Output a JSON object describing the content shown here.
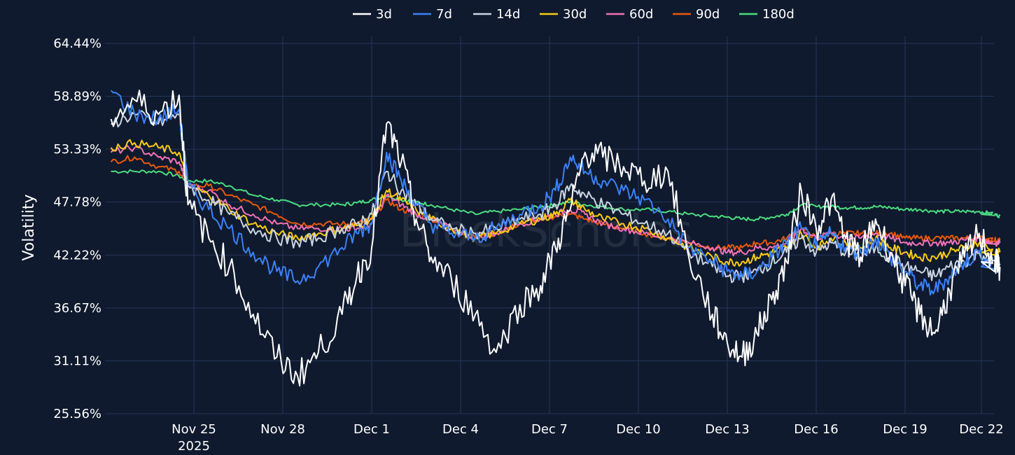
{
  "chart_data": {
    "type": "line",
    "title": "",
    "xlabel": "",
    "ylabel": "Volatility",
    "watermark": "BlockScholes",
    "ylim": [
      25.56,
      64.44
    ],
    "yticks": [
      "64.44%",
      "58.89%",
      "53.33%",
      "47.78%",
      "42.22%",
      "36.67%",
      "31.11%",
      "25.56%"
    ],
    "ytick_values": [
      64.44,
      58.89,
      53.33,
      47.78,
      42.22,
      36.67,
      31.11,
      25.56
    ],
    "xlim": [
      21.0,
      51.0
    ],
    "xticks": [
      {
        "day": 24.0,
        "label": "Nov 25",
        "sub": "2025"
      },
      {
        "day": 27.0,
        "label": "Nov 28",
        "sub": ""
      },
      {
        "day": 30.0,
        "label": "Dec 1",
        "sub": ""
      },
      {
        "day": 33.0,
        "label": "Dec 4",
        "sub": ""
      },
      {
        "day": 36.0,
        "label": "Dec 7",
        "sub": ""
      },
      {
        "day": 39.0,
        "label": "Dec 10",
        "sub": ""
      },
      {
        "day": 42.0,
        "label": "Dec 13",
        "sub": ""
      },
      {
        "day": 45.0,
        "label": "Dec 16",
        "sub": ""
      },
      {
        "day": 48.0,
        "label": "Dec 19",
        "sub": ""
      },
      {
        "day": 51.0,
        "label": "Dec 22",
        "sub": ""
      }
    ],
    "x": [
      21.2,
      22.0,
      22.8,
      23.5,
      23.8,
      24.5,
      25.2,
      26.0,
      26.8,
      27.5,
      28.2,
      29.0,
      29.5,
      30.0,
      30.5,
      31.0,
      31.5,
      32.0,
      32.7,
      33.5,
      34.2,
      35.0,
      35.7,
      36.2,
      36.7,
      37.2,
      37.8,
      38.5,
      39.2,
      40.0,
      40.7,
      41.5,
      42.0,
      42.5,
      43.0,
      43.5,
      44.0,
      44.5,
      45.0,
      45.5,
      46.0,
      46.5,
      47.0,
      47.5,
      48.0,
      48.5,
      49.0,
      49.5,
      50.0,
      50.5,
      51.0,
      51.2
    ],
    "series": [
      {
        "name": "3d",
        "color": "#ffffff",
        "values": [
          56.5,
          58.5,
          57.0,
          59.0,
          47.5,
          44.0,
          41.0,
          36.0,
          31.5,
          29.5,
          32.0,
          36.0,
          40.0,
          43.0,
          56.0,
          52.0,
          46.0,
          42.0,
          39.5,
          36.0,
          32.0,
          37.0,
          39.0,
          43.0,
          47.0,
          53.0,
          52.5,
          51.5,
          50.0,
          51.0,
          42.0,
          36.0,
          33.0,
          31.5,
          34.0,
          37.5,
          41.5,
          49.0,
          45.0,
          48.0,
          44.0,
          42.0,
          46.0,
          42.5,
          39.0,
          36.0,
          34.0,
          38.5,
          42.0,
          44.5,
          41.5,
          41.0
        ]
      },
      {
        "name": "7d",
        "color": "#3b82f6",
        "values": [
          59.5,
          57.0,
          56.5,
          57.5,
          49.5,
          47.0,
          45.0,
          42.5,
          40.5,
          39.5,
          41.0,
          43.0,
          44.5,
          45.5,
          53.0,
          50.0,
          47.5,
          45.5,
          44.5,
          44.0,
          45.0,
          46.5,
          47.5,
          49.0,
          52.5,
          51.0,
          50.0,
          49.0,
          48.0,
          46.0,
          43.0,
          41.5,
          40.5,
          40.0,
          40.5,
          42.0,
          43.5,
          45.0,
          43.0,
          44.5,
          43.0,
          42.5,
          44.0,
          42.0,
          40.5,
          39.0,
          38.5,
          40.0,
          41.5,
          42.5,
          41.0,
          40.8
        ]
      },
      {
        "name": "14d",
        "color": "#cbd5e1",
        "values": [
          56.0,
          57.0,
          56.0,
          57.0,
          49.5,
          48.0,
          46.5,
          45.0,
          44.0,
          43.5,
          44.0,
          45.0,
          45.5,
          46.5,
          51.0,
          49.0,
          47.5,
          46.0,
          45.0,
          44.5,
          45.0,
          46.0,
          46.5,
          47.5,
          49.5,
          48.5,
          47.5,
          46.5,
          45.5,
          44.5,
          42.5,
          41.0,
          40.0,
          40.0,
          40.5,
          41.5,
          42.5,
          44.0,
          42.5,
          43.5,
          42.5,
          42.0,
          43.0,
          42.0,
          41.0,
          40.5,
          40.0,
          41.0,
          41.5,
          42.5,
          41.5,
          41.3
        ]
      },
      {
        "name": "30d",
        "color": "#facc15",
        "values": [
          53.5,
          54.0,
          53.5,
          53.0,
          49.5,
          48.5,
          47.0,
          45.5,
          44.5,
          44.0,
          44.5,
          45.0,
          45.3,
          46.0,
          49.0,
          48.0,
          47.0,
          46.0,
          45.0,
          44.0,
          44.5,
          45.5,
          46.0,
          46.5,
          48.0,
          47.0,
          46.0,
          45.5,
          45.0,
          44.0,
          43.0,
          42.0,
          41.5,
          41.5,
          42.0,
          42.5,
          43.0,
          44.5,
          43.0,
          44.0,
          43.5,
          43.0,
          44.0,
          43.0,
          42.5,
          42.0,
          42.0,
          42.5,
          43.0,
          43.5,
          42.5,
          42.5
        ]
      },
      {
        "name": "60d",
        "color": "#f472b6",
        "values": [
          53.0,
          53.5,
          52.5,
          52.0,
          49.5,
          49.0,
          47.5,
          46.5,
          45.5,
          45.0,
          45.0,
          45.0,
          45.0,
          45.5,
          48.5,
          47.5,
          46.5,
          46.0,
          45.0,
          44.0,
          44.5,
          45.5,
          46.0,
          46.5,
          47.0,
          46.5,
          45.5,
          45.0,
          44.5,
          44.0,
          43.5,
          43.0,
          42.5,
          42.5,
          43.0,
          43.0,
          43.5,
          45.0,
          44.0,
          44.5,
          44.0,
          44.0,
          44.5,
          44.0,
          43.5,
          43.5,
          43.5,
          43.5,
          43.8,
          44.0,
          43.5,
          43.5
        ]
      },
      {
        "name": "90d",
        "color": "#ea580c",
        "values": [
          52.0,
          52.5,
          51.5,
          51.0,
          49.5,
          49.5,
          48.5,
          47.5,
          46.5,
          45.5,
          45.5,
          45.5,
          45.5,
          46.0,
          48.0,
          47.0,
          46.5,
          46.0,
          45.0,
          44.0,
          44.5,
          45.5,
          46.0,
          46.3,
          46.5,
          46.0,
          45.5,
          45.0,
          44.5,
          44.0,
          43.5,
          43.0,
          43.0,
          43.0,
          43.5,
          43.5,
          44.0,
          45.0,
          44.0,
          44.5,
          44.5,
          44.5,
          44.5,
          44.5,
          44.0,
          44.0,
          44.0,
          44.0,
          44.0,
          44.0,
          43.8,
          43.8
        ]
      },
      {
        "name": "180d",
        "color": "#4ade80",
        "values": [
          51.0,
          51.0,
          51.0,
          50.5,
          50.0,
          50.0,
          49.5,
          48.5,
          48.0,
          47.5,
          47.5,
          47.5,
          47.7,
          48.0,
          48.5,
          48.0,
          47.8,
          47.5,
          47.0,
          46.5,
          46.8,
          47.0,
          47.3,
          47.5,
          47.8,
          47.5,
          47.3,
          47.0,
          47.0,
          46.8,
          46.5,
          46.3,
          46.2,
          46.0,
          46.0,
          46.2,
          46.5,
          47.5,
          47.3,
          47.3,
          47.2,
          47.2,
          47.3,
          47.2,
          47.0,
          47.0,
          46.8,
          46.8,
          46.8,
          46.8,
          46.5,
          46.3
        ]
      }
    ],
    "legend_position": "top-center",
    "grid": true
  }
}
